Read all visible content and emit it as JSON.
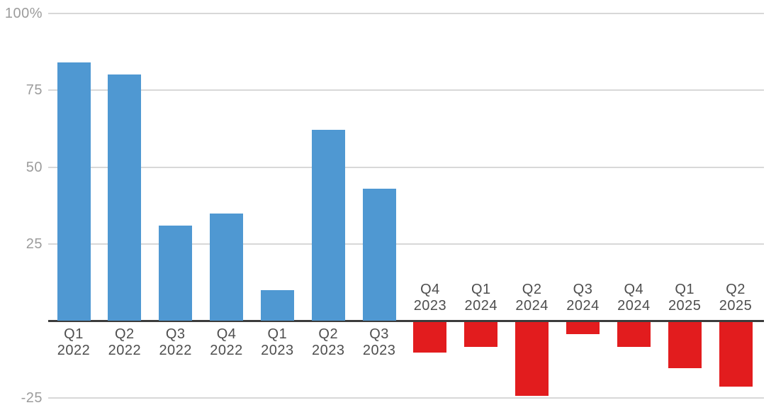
{
  "chart_data": {
    "type": "bar",
    "title": "",
    "xlabel": "",
    "ylabel": "",
    "categories": [
      "Q1 2022",
      "Q2 2022",
      "Q3 2022",
      "Q4 2022",
      "Q1 2023",
      "Q2 2023",
      "Q3 2023",
      "Q4 2023",
      "Q1 2024",
      "Q2 2024",
      "Q3 2024",
      "Q4 2024",
      "Q1 2025",
      "Q2 2025"
    ],
    "values": [
      84,
      80,
      31,
      35,
      10,
      62,
      43,
      -10,
      -8,
      -24,
      -4,
      -8,
      -15,
      -21
    ],
    "unit": "%",
    "ylim": [
      -25,
      100
    ],
    "yticks": [
      {
        "value": 100,
        "label": "100%"
      },
      {
        "value": 75,
        "label": "75"
      },
      {
        "value": 50,
        "label": "50"
      },
      {
        "value": 25,
        "label": "25"
      },
      {
        "value": -25,
        "label": "-25"
      }
    ],
    "grid": true,
    "legend": false,
    "label_placement": {
      "positive": "below-axis",
      "negative": "above-axis"
    },
    "colors": {
      "positive_bar": "#4f98d2",
      "negative_bar": "#e21c1e",
      "gridline": "#d8d8d8",
      "zero_axis": "#3c3c3c",
      "y_tick_label": "#9c9c9c",
      "x_tick_label": "#4e4e4e",
      "background": "#ffffff"
    }
  }
}
